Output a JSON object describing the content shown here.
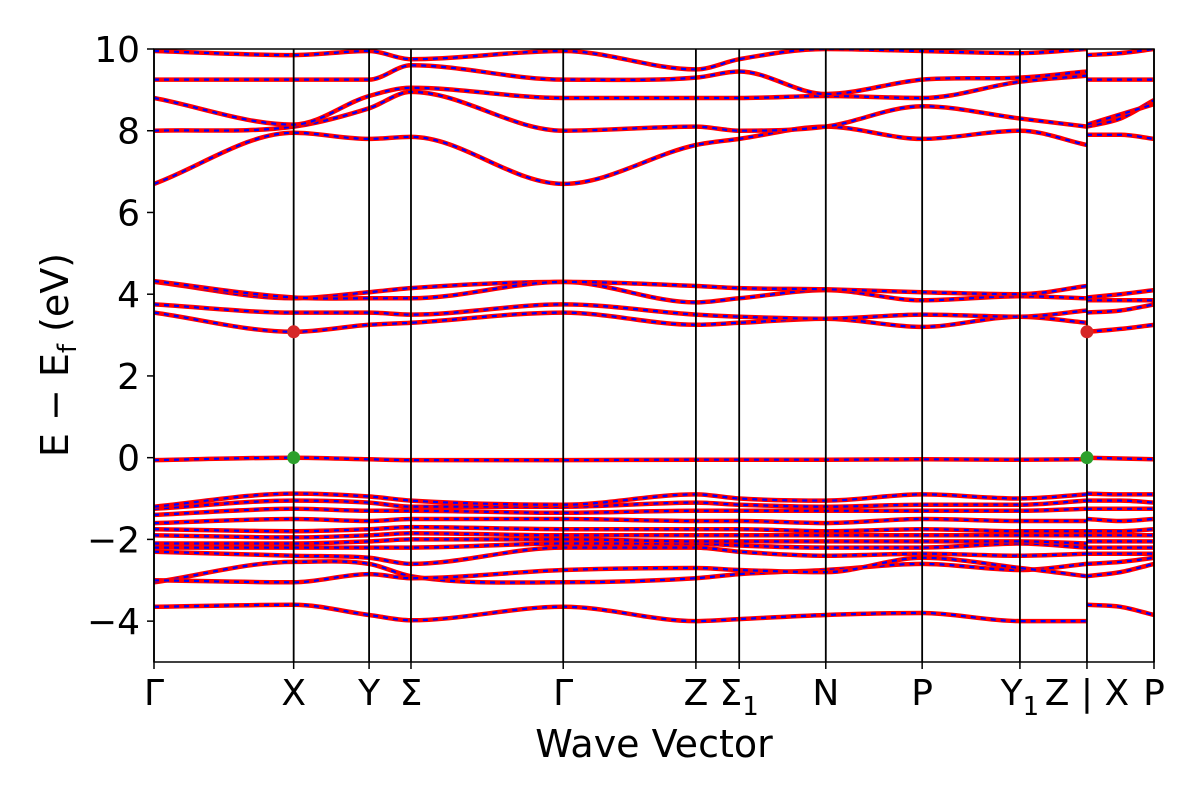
{
  "chart_data": {
    "type": "line",
    "title": "",
    "xlabel": "Wave Vector",
    "ylabel": "E − E",
    "ylabel_sub": "f",
    "ylabel_unit": " (eV)",
    "ylim": [
      -5,
      10
    ],
    "yticks": [
      {
        "value": -4,
        "label": "−4"
      },
      {
        "value": -2,
        "label": "−2"
      },
      {
        "value": 0,
        "label": "0"
      },
      {
        "value": 2,
        "label": "2"
      },
      {
        "value": 4,
        "label": "4"
      },
      {
        "value": 6,
        "label": "6"
      },
      {
        "value": 8,
        "label": "8"
      },
      {
        "value": 10,
        "label": "10"
      }
    ],
    "xlim": [
      0,
      7.16
    ],
    "high_symmetry_points": [
      {
        "k": 0.0,
        "label": "Γ"
      },
      {
        "k": 1.0,
        "label": "X"
      },
      {
        "k": 1.54,
        "label": "Y"
      },
      {
        "k": 1.84,
        "label": "Σ"
      },
      {
        "k": 2.93,
        "label": "Γ"
      },
      {
        "k": 3.88,
        "label": "Z"
      },
      {
        "k": 4.19,
        "label": "Σ",
        "sub": "1"
      },
      {
        "k": 4.81,
        "label": "N"
      },
      {
        "k": 5.5,
        "label": "P"
      },
      {
        "k": 6.2,
        "label": "Y",
        "sub": "1"
      },
      {
        "k": 6.68,
        "label": "Z | X"
      },
      {
        "k": 7.16,
        "label": "P"
      }
    ],
    "grid": false,
    "series_colors": {
      "band": "#ff0000",
      "overlay": "#0000ff",
      "cbm_marker": "#d62728",
      "vbm_marker": "#2ca02c"
    },
    "markers": [
      {
        "k": 1.0,
        "e": 3.08,
        "kind": "cbm"
      },
      {
        "k": 6.68,
        "e": 3.08,
        "kind": "cbm"
      },
      {
        "k": 1.0,
        "e": 0.0,
        "kind": "vbm"
      },
      {
        "k": 6.68,
        "e": 0.0,
        "kind": "vbm"
      }
    ],
    "segments": [
      {
        "k_points": [
          0.0,
          1.0,
          1.54,
          1.84,
          2.93,
          3.88,
          4.19,
          4.81,
          5.5,
          6.2,
          6.68
        ],
        "bands": [
          [
            -3.65,
            -3.6,
            -3.85,
            -3.98,
            -3.65,
            -4.0,
            -3.95,
            -3.85,
            -3.8,
            -4.0,
            -4.0
          ],
          [
            -3.05,
            -2.55,
            -2.6,
            -2.9,
            -3.05,
            -2.95,
            -2.85,
            -2.75,
            -2.6,
            -2.75,
            -2.6
          ],
          [
            -3.0,
            -3.05,
            -2.85,
            -2.95,
            -2.75,
            -2.7,
            -2.75,
            -2.8,
            -2.45,
            -2.7,
            -2.9
          ],
          [
            -2.3,
            -2.4,
            -2.45,
            -2.6,
            -2.2,
            -2.2,
            -2.3,
            -2.4,
            -2.35,
            -2.4,
            -2.35
          ],
          [
            -2.2,
            -2.2,
            -2.2,
            -2.2,
            -2.1,
            -2.1,
            -2.15,
            -2.2,
            -2.2,
            -2.1,
            -2.2
          ],
          [
            -2.1,
            -2.1,
            -2.05,
            -2.0,
            -2.0,
            -2.05,
            -2.05,
            -2.05,
            -2.05,
            -2.05,
            -2.1
          ],
          [
            -1.9,
            -1.95,
            -1.9,
            -1.85,
            -1.9,
            -1.9,
            -1.9,
            -1.9,
            -1.9,
            -1.9,
            -1.9
          ],
          [
            -1.75,
            -1.8,
            -1.75,
            -1.7,
            -1.75,
            -1.75,
            -1.75,
            -1.8,
            -1.75,
            -1.8,
            -1.8
          ],
          [
            -1.6,
            -1.5,
            -1.55,
            -1.5,
            -1.5,
            -1.55,
            -1.55,
            -1.6,
            -1.5,
            -1.55,
            -1.55
          ],
          [
            -1.4,
            -1.25,
            -1.3,
            -1.3,
            -1.35,
            -1.3,
            -1.3,
            -1.3,
            -1.3,
            -1.3,
            -1.25
          ],
          [
            -1.25,
            -1.05,
            -1.1,
            -1.2,
            -1.2,
            -1.1,
            -1.15,
            -1.2,
            -1.15,
            -1.15,
            -1.05
          ],
          [
            -1.2,
            -0.88,
            -0.95,
            -1.05,
            -1.15,
            -0.9,
            -1.0,
            -1.05,
            -0.9,
            -1.0,
            -0.9
          ],
          [
            -0.06,
            0.0,
            -0.04,
            -0.06,
            -0.06,
            -0.05,
            -0.05,
            -0.05,
            -0.04,
            -0.05,
            -0.04
          ],
          [
            3.55,
            3.08,
            3.25,
            3.3,
            3.55,
            3.25,
            3.3,
            3.4,
            3.2,
            3.45,
            3.3
          ],
          [
            3.75,
            3.55,
            3.55,
            3.5,
            3.75,
            3.5,
            3.45,
            3.4,
            3.5,
            3.45,
            3.6
          ],
          [
            4.3,
            3.9,
            4.05,
            4.15,
            4.3,
            3.8,
            3.9,
            4.1,
            3.85,
            3.95,
            3.9
          ],
          [
            4.32,
            3.92,
            3.9,
            3.9,
            4.3,
            4.2,
            4.15,
            4.12,
            4.05,
            4.0,
            4.2
          ],
          [
            6.7,
            7.95,
            7.8,
            7.85,
            6.7,
            7.65,
            7.8,
            8.1,
            7.8,
            8.0,
            7.65
          ],
          [
            8.0,
            8.1,
            8.55,
            8.95,
            8.0,
            8.1,
            8.0,
            8.1,
            8.6,
            8.3,
            8.1
          ],
          [
            8.8,
            8.15,
            8.85,
            9.05,
            8.8,
            8.8,
            8.8,
            8.85,
            8.8,
            9.2,
            9.35
          ],
          [
            9.25,
            9.25,
            9.25,
            9.6,
            9.25,
            9.3,
            9.45,
            8.9,
            9.25,
            9.3,
            9.45
          ],
          [
            9.95,
            9.85,
            9.95,
            9.75,
            9.95,
            9.5,
            9.75,
            10.0,
            9.95,
            9.9,
            10.0
          ]
        ]
      },
      {
        "k_points": [
          6.68,
          6.92,
          7.16
        ],
        "bands": [
          [
            -3.6,
            -3.65,
            -3.85
          ],
          [
            -2.9,
            -2.8,
            -2.6
          ],
          [
            -2.6,
            -2.55,
            -2.45
          ],
          [
            -2.35,
            -2.35,
            -2.35
          ],
          [
            -2.2,
            -2.2,
            -2.2
          ],
          [
            -2.05,
            -2.05,
            -2.05
          ],
          [
            -1.9,
            -1.9,
            -1.9
          ],
          [
            -1.8,
            -1.8,
            -1.75
          ],
          [
            -1.5,
            -1.55,
            -1.5
          ],
          [
            -1.25,
            -1.25,
            -1.25
          ],
          [
            -1.05,
            -1.05,
            -1.1
          ],
          [
            -0.88,
            -0.9,
            -0.9
          ],
          [
            0.0,
            -0.02,
            -0.04
          ],
          [
            3.08,
            3.15,
            3.25
          ],
          [
            3.55,
            3.6,
            3.75
          ],
          [
            3.85,
            3.85,
            3.85
          ],
          [
            3.92,
            4.0,
            4.1
          ],
          [
            7.9,
            7.9,
            7.8
          ],
          [
            8.1,
            8.3,
            8.75
          ],
          [
            8.15,
            8.4,
            8.65
          ],
          [
            9.25,
            9.25,
            9.25
          ],
          [
            9.85,
            9.9,
            10.0
          ]
        ]
      }
    ]
  }
}
